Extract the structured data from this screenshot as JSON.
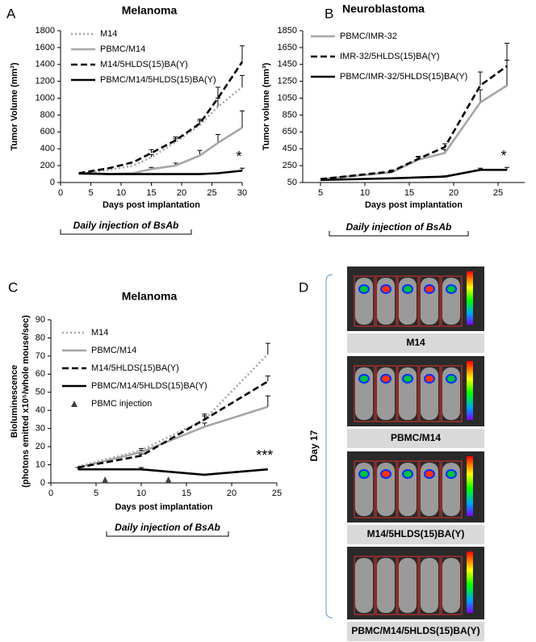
{
  "chart_data": [
    {
      "type": "line",
      "panel": "A",
      "title": "Melanoma",
      "xlabel": "Days post implantation",
      "ylabel": "Tumor Volume (mm³)",
      "xlim": [
        0,
        30
      ],
      "xticks": [
        0,
        5,
        10,
        15,
        20,
        25,
        30
      ],
      "ylim": [
        0,
        1800
      ],
      "yticks": [
        0,
        200,
        400,
        600,
        800,
        1000,
        1200,
        1400,
        1600,
        1800
      ],
      "legend": "upper left",
      "annotation": "*",
      "note": "Daily injection of BsAb",
      "series": [
        {
          "name": "M14",
          "color": "#a6a6a6",
          "linestyle": "dotted",
          "x": [
            3,
            8,
            12,
            15,
            19,
            23,
            26,
            30
          ],
          "values": [
            100,
            150,
            200,
            300,
            480,
            680,
            900,
            1130
          ],
          "errors": [
            null,
            null,
            null,
            30,
            40,
            50,
            100,
            140
          ]
        },
        {
          "name": "PBMC/M14",
          "color": "#a6a6a6",
          "linestyle": "solid",
          "x": [
            3,
            8,
            12,
            15,
            19,
            23,
            26,
            30
          ],
          "values": [
            100,
            100,
            110,
            160,
            200,
            320,
            470,
            650
          ],
          "errors": [
            null,
            null,
            null,
            20,
            30,
            60,
            100,
            200
          ]
        },
        {
          "name": "M14/5HLDS(15)BA(Y)",
          "color": "#000000",
          "linestyle": "dashed",
          "x": [
            3,
            8,
            12,
            15,
            19,
            23,
            26,
            30
          ],
          "values": [
            110,
            170,
            240,
            350,
            500,
            700,
            1000,
            1430
          ],
          "errors": [
            null,
            null,
            null,
            40,
            40,
            50,
            130,
            190
          ]
        },
        {
          "name": "PBMC/M14/5HLDS(15)BA(Y)",
          "color": "#000000",
          "linestyle": "solid",
          "x": [
            3,
            8,
            12,
            15,
            19,
            23,
            26,
            30
          ],
          "values": [
            110,
            100,
            100,
            100,
            100,
            100,
            110,
            140
          ],
          "errors": [
            null,
            null,
            null,
            null,
            null,
            null,
            null,
            30
          ]
        }
      ]
    },
    {
      "type": "line",
      "panel": "B",
      "title": "Neuroblastoma",
      "xlabel": "Days post implantation",
      "ylabel": "Tumor volume (mm³)",
      "xlim": [
        3,
        28
      ],
      "xticks": [
        5,
        10,
        15,
        20,
        25
      ],
      "ylim": [
        50,
        1850
      ],
      "yticks": [
        50,
        250,
        450,
        650,
        850,
        1050,
        1250,
        1450,
        1650,
        1850
      ],
      "legend": "upper left",
      "annotation": "*",
      "note": "Daily injection of BsAb",
      "series": [
        {
          "name": "PBMC/IMR-32",
          "color": "#a6a6a6",
          "linestyle": "solid",
          "x": [
            5,
            13,
            16,
            19,
            23,
            26
          ],
          "values": [
            90,
            170,
            320,
            400,
            1000,
            1200
          ],
          "errors": [
            null,
            20,
            30,
            40,
            150,
            300
          ]
        },
        {
          "name": "IMR-32/5HLDS(15)BA(Y)",
          "color": "#000000",
          "linestyle": "dashed",
          "x": [
            5,
            13,
            16,
            19,
            23,
            26
          ],
          "values": [
            90,
            180,
            330,
            470,
            1200,
            1430
          ],
          "errors": [
            null,
            20,
            30,
            40,
            160,
            270
          ]
        },
        {
          "name": "PBMC/IMR-32/5HLDS(15)BA(Y)",
          "color": "#000000",
          "linestyle": "solid",
          "x": [
            5,
            13,
            16,
            19,
            23,
            26
          ],
          "values": [
            80,
            100,
            110,
            120,
            200,
            200
          ],
          "errors": [
            null,
            null,
            null,
            10,
            20,
            30
          ]
        }
      ]
    },
    {
      "type": "line",
      "panel": "C",
      "title": "Melanoma",
      "xlabel": "Days post implantation",
      "ylabel": [
        "Bioluminescence",
        "(photons emitted x10⁵/whole mouse/sec)"
      ],
      "xlim": [
        0,
        25
      ],
      "xticks": [
        0,
        5,
        10,
        15,
        20,
        25
      ],
      "ylim": [
        0,
        90
      ],
      "yticks": [
        0,
        10,
        20,
        30,
        40,
        50,
        60,
        70,
        80,
        90
      ],
      "legend": "upper left",
      "annotation": "***",
      "note": "Daily injection of BsAb",
      "series": [
        {
          "name": "M14",
          "color": "#a6a6a6",
          "linestyle": "dotted",
          "x": [
            3,
            10,
            17,
            24
          ],
          "values": [
            9,
            18,
            35,
            71
          ],
          "errors": [
            null,
            1,
            2,
            6
          ]
        },
        {
          "name": "PBMC/M14",
          "color": "#a6a6a6",
          "linestyle": "solid",
          "x": [
            3,
            10,
            17,
            24
          ],
          "values": [
            8.5,
            17,
            31,
            42
          ],
          "errors": [
            null,
            1,
            2,
            6
          ]
        },
        {
          "name": "M14/5HLDS(15)BA(Y)",
          "color": "#000000",
          "linestyle": "dashed",
          "x": [
            3,
            10,
            17,
            24
          ],
          "values": [
            8.5,
            15,
            35,
            56
          ],
          "errors": [
            null,
            1,
            3,
            3
          ]
        },
        {
          "name": "PBMC/M14/5HLDS(15)BA(Y)",
          "color": "#000000",
          "linestyle": "solid",
          "x": [
            3,
            10,
            17,
            24
          ],
          "values": [
            7.5,
            7.5,
            4.5,
            7.5
          ],
          "errors": [
            1,
            1,
            null,
            null
          ]
        }
      ],
      "markers": {
        "name": "PBMC injection",
        "color": "#404040",
        "x": [
          6,
          13
        ],
        "values": [
          0,
          0
        ]
      }
    }
  ],
  "panel_d": {
    "letter": "D",
    "day": "Day 17",
    "images": [
      "M14",
      "PBMC/M14",
      "M14/5HLDS(15)BA(Y)",
      "PBMC/M14/5HLDS(15)BA(Y)"
    ]
  }
}
